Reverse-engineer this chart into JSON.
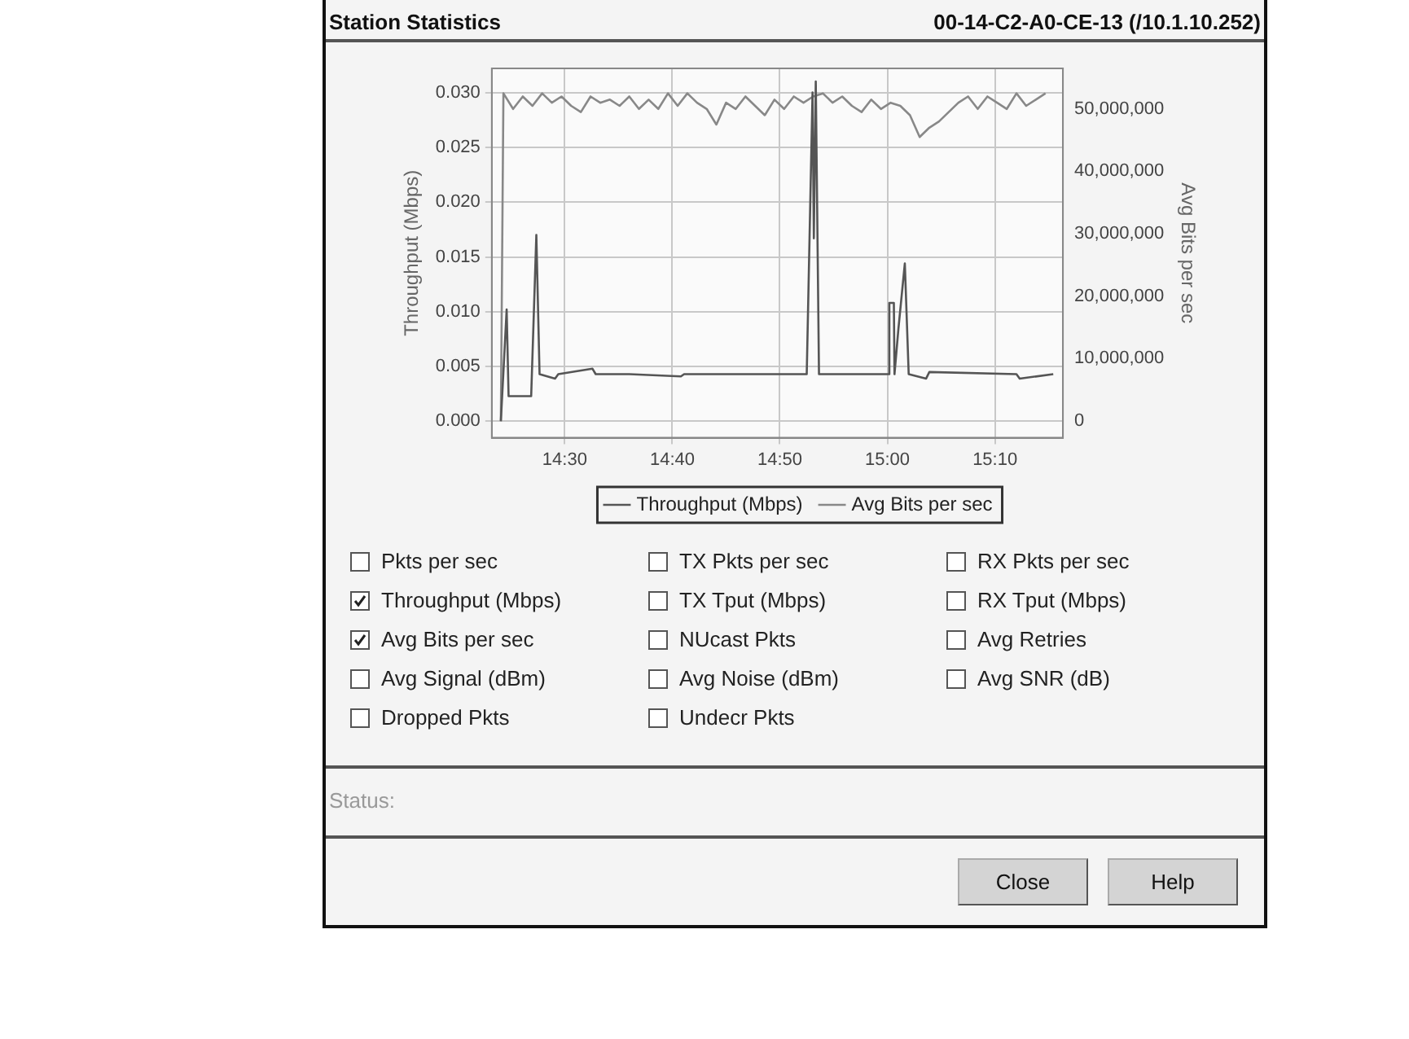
{
  "chart_data": {
    "type": "line",
    "title": "Station Statistics",
    "subtitle": "00-14-C2-A0-CE-13 (/10.1.10.252)",
    "ylabel": "Throughput (Mbps)",
    "y2label": "Avg Bits per sec",
    "xlim": [
      14.387,
      15.272
    ],
    "xticks": [
      {
        "value": 14.5,
        "label": "14:30"
      },
      {
        "value": 14.6667,
        "label": "14:40"
      },
      {
        "value": 14.8333,
        "label": "14:50"
      },
      {
        "value": 15.0,
        "label": "15:00"
      },
      {
        "value": 15.1667,
        "label": "15:10"
      }
    ],
    "ylim": [
      -0.0015,
      0.0322
    ],
    "yticks": [
      {
        "value": 0,
        "label": "0.000"
      },
      0.005,
      {
        "value": 0.01,
        "label": "0.010"
      },
      0.015,
      {
        "value": 0.02,
        "label": "0.020"
      },
      0.025,
      {
        "value": 0.03,
        "label": "0.030"
      }
    ],
    "y2lim": [
      -2700000,
      56500000
    ],
    "y2ticks": [
      0,
      {
        "value": 10000000,
        "label": "10,000,000"
      },
      {
        "value": 20000000,
        "label": "20,000,000"
      },
      {
        "value": 30000000,
        "label": "30,000,000"
      },
      {
        "value": 40000000,
        "label": "40,000,000"
      },
      {
        "value": 50000000,
        "label": "50,000,000"
      }
    ],
    "grid": true,
    "legend": "bottom",
    "marker": "none",
    "line_style": "solid",
    "series": [
      {
        "name": "Throughput (Mbps)",
        "color": "#555555",
        "x": [
          14.401,
          14.41,
          14.413,
          14.448,
          14.456,
          14.461,
          14.485,
          14.49,
          14.543,
          14.548,
          14.6,
          14.68,
          14.685,
          14.75,
          14.85,
          14.875,
          14.884,
          14.886,
          14.889,
          14.894,
          15.002,
          15.003,
          15.01,
          15.011,
          15.017,
          15.022,
          15.027,
          15.033,
          15.06,
          15.065,
          15.2,
          15.205,
          15.257
        ],
        "values": [
          0,
          0.0102,
          0.0023,
          0.0023,
          0.017,
          0.0043,
          0.0039,
          0.0043,
          0.0048,
          0.0043,
          0.0043,
          0.0041,
          0.0043,
          0.0043,
          0.0043,
          0.0043,
          0.03,
          0.0167,
          0.031,
          0.0043,
          0.0043,
          0.0108,
          0.0108,
          0.0043,
          0.0084,
          0.0114,
          0.0144,
          0.0043,
          0.0039,
          0.0045,
          0.0043,
          0.0039,
          0.0043
        ]
      },
      {
        "name": "Avg Bits per sec",
        "color": "#888888",
        "axis": "y2",
        "x": [
          14.401,
          14.405,
          14.42,
          14.435,
          14.45,
          14.465,
          14.48,
          14.495,
          14.51,
          14.525,
          14.54,
          14.555,
          14.57,
          14.585,
          14.6,
          14.615,
          14.63,
          14.645,
          14.66,
          14.675,
          14.69,
          14.705,
          14.72,
          14.735,
          14.75,
          14.765,
          14.78,
          14.795,
          14.81,
          14.825,
          14.84,
          14.855,
          14.87,
          14.885,
          14.9,
          14.915,
          14.93,
          14.945,
          14.96,
          14.975,
          14.99,
          15.005,
          15.02,
          15.035,
          15.05,
          15.065,
          15.08,
          15.095,
          15.11,
          15.125,
          15.14,
          15.155,
          15.17,
          15.185,
          15.2,
          15.215,
          15.23,
          15.245
        ],
        "values": [
          0,
          52500000,
          50000000,
          52000000,
          50500000,
          52500000,
          51000000,
          52000000,
          50500000,
          49500000,
          52000000,
          51000000,
          51500000,
          50500000,
          52000000,
          50000000,
          51500000,
          50000000,
          52500000,
          50500000,
          52500000,
          51000000,
          50000000,
          47500000,
          51000000,
          50000000,
          52000000,
          50500000,
          49000000,
          51500000,
          50000000,
          52000000,
          51000000,
          52000000,
          52500000,
          51000000,
          52000000,
          50500000,
          49500000,
          51500000,
          50000000,
          51000000,
          50500000,
          49000000,
          45500000,
          47000000,
          48000000,
          49500000,
          51000000,
          52000000,
          50000000,
          52000000,
          51000000,
          50000000,
          52500000,
          50500000,
          51500000,
          52500000
        ]
      }
    ],
    "annotations": [
      "Pkts per sec",
      "TX Pkts per sec",
      "RX Pkts per sec",
      "Throughput (Mbps)",
      "TX Tput (Mbps)",
      "RX Tput (Mbps)",
      "Avg Bits per sec",
      "NUcast Pkts",
      "Avg Retries",
      "Avg Signal (dBm)",
      "Avg Noise (dBm)",
      "Avg SNR (dB)",
      "Dropped Pkts",
      "Undecr Pkts",
      "Status:",
      "Close",
      "Help"
    ]
  }
}
